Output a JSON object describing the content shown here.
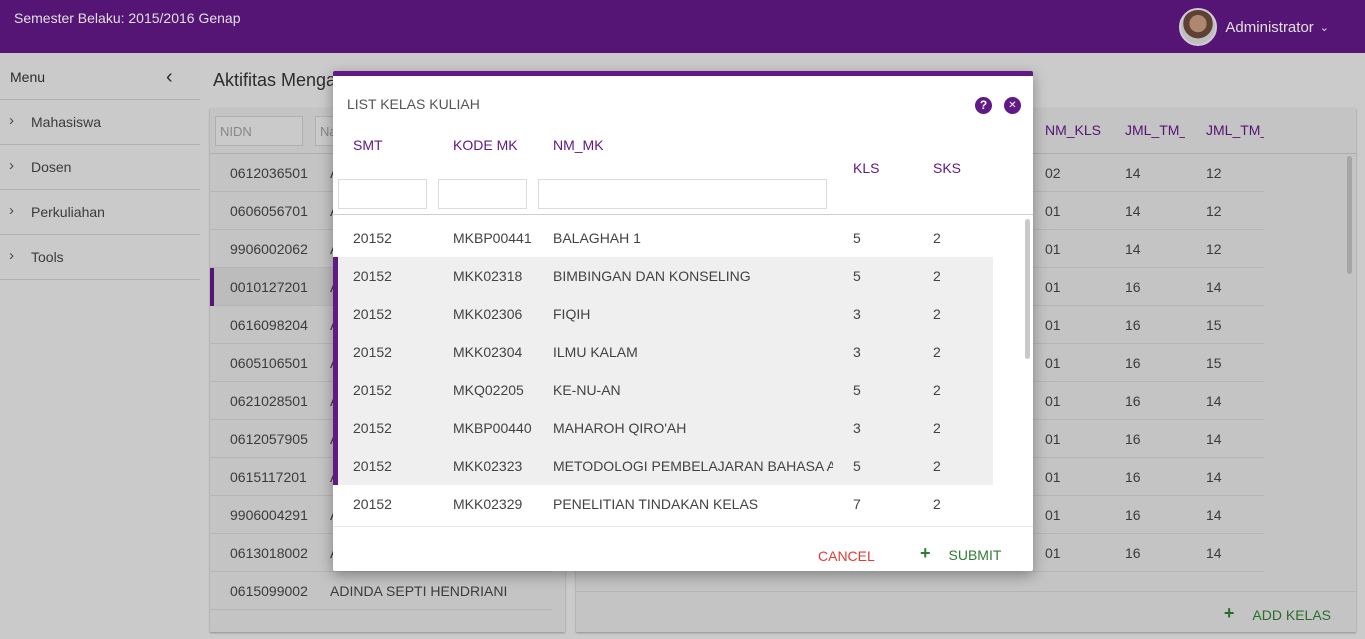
{
  "header": {
    "semester": "Semester Belaku: 2015/2016 Genap",
    "user": "Administrator",
    "chevron": "⌄"
  },
  "sidebar": {
    "title": "Menu",
    "collapse_icon": "‹",
    "items": [
      {
        "label": "Mahasiswa"
      },
      {
        "label": "Dosen"
      },
      {
        "label": "Perkuliahan"
      },
      {
        "label": "Tools"
      }
    ]
  },
  "page": {
    "title": "Aktifitas Mengajar Dosen"
  },
  "left_table": {
    "filter_nidn": "NIDN",
    "filter_nama": "Nama",
    "rows": [
      {
        "nidn": "0612036501",
        "nama": "A"
      },
      {
        "nidn": "0606056701",
        "nama": "A"
      },
      {
        "nidn": "9906002062",
        "nama": "A"
      },
      {
        "nidn": "0010127201",
        "nama": "A"
      },
      {
        "nidn": "0616098204",
        "nama": "A"
      },
      {
        "nidn": "0605106501",
        "nama": "A"
      },
      {
        "nidn": "0621028501",
        "nama": "A"
      },
      {
        "nidn": "0612057905",
        "nama": "A"
      },
      {
        "nidn": "0615117201",
        "nama": "A"
      },
      {
        "nidn": "9906004291",
        "nama": "A"
      },
      {
        "nidn": "0613018002",
        "nama": "A"
      },
      {
        "nidn": "0615099002",
        "nama": "ADINDA SEPTI HENDRIANI"
      }
    ]
  },
  "right_table": {
    "headers": {
      "nm_kls": "NM_KLS",
      "jml_tm_p": "JML_TM_P",
      "jml_tm_r": "JML_TM_R"
    },
    "rows": [
      {
        "nm_kls": "02",
        "p": "14",
        "r": "12"
      },
      {
        "nm_kls": "01",
        "p": "14",
        "r": "12"
      },
      {
        "nm_kls": "01",
        "p": "14",
        "r": "12"
      },
      {
        "nm_kls": "01",
        "p": "16",
        "r": "14"
      },
      {
        "nm_kls": "01",
        "p": "16",
        "r": "15"
      },
      {
        "nm_kls": "01",
        "p": "16",
        "r": "15"
      },
      {
        "nm_kls": "01",
        "p": "16",
        "r": "14"
      },
      {
        "nm_kls": "01",
        "p": "16",
        "r": "14"
      },
      {
        "nm_kls": "01",
        "p": "16",
        "r": "14"
      },
      {
        "nm_kls": "01",
        "p": "16",
        "r": "14"
      },
      {
        "nm_kls": "01",
        "p": "16",
        "r": "14"
      }
    ],
    "add_label": "ADD KELAS"
  },
  "modal": {
    "title": "LIST KELAS KULIAH",
    "help_icon": "?",
    "close_icon": "✕",
    "columns": {
      "smt": "SMT",
      "kode": "KODE MK",
      "nm": "NM_MK",
      "kls": "KLS",
      "sks": "SKS"
    },
    "rows": [
      {
        "smt": "20152",
        "kode": "MKBP00441",
        "nm": "BALAGHAH 1",
        "kls": "5",
        "sks": "2"
      },
      {
        "smt": "20152",
        "kode": "MKK02318",
        "nm": "BIMBINGAN DAN KONSELING",
        "kls": "5",
        "sks": "2"
      },
      {
        "smt": "20152",
        "kode": "MKK02306",
        "nm": "FIQIH",
        "kls": "3",
        "sks": "2"
      },
      {
        "smt": "20152",
        "kode": "MKK02304",
        "nm": "ILMU KALAM",
        "kls": "3",
        "sks": "2"
      },
      {
        "smt": "20152",
        "kode": "MKQ02205",
        "nm": "KE-NU-AN",
        "kls": "5",
        "sks": "2"
      },
      {
        "smt": "20152",
        "kode": "MKBP00440",
        "nm": "MAHAROH QIRO'AH",
        "kls": "3",
        "sks": "2"
      },
      {
        "smt": "20152",
        "kode": "MKK02323",
        "nm": "METODOLOGI PEMBELAJARAN BAHASA AR",
        "kls": "5",
        "sks": "2"
      },
      {
        "smt": "20152",
        "kode": "MKK02329",
        "nm": "PENELITIAN TINDAKAN KELAS",
        "kls": "7",
        "sks": "2"
      }
    ],
    "cancel": "CANCEL",
    "submit": "SUBMIT",
    "plus": "+"
  },
  "colors": {
    "primary": "#611986",
    "cancel": "#e53935",
    "submit": "#2e7d32"
  }
}
